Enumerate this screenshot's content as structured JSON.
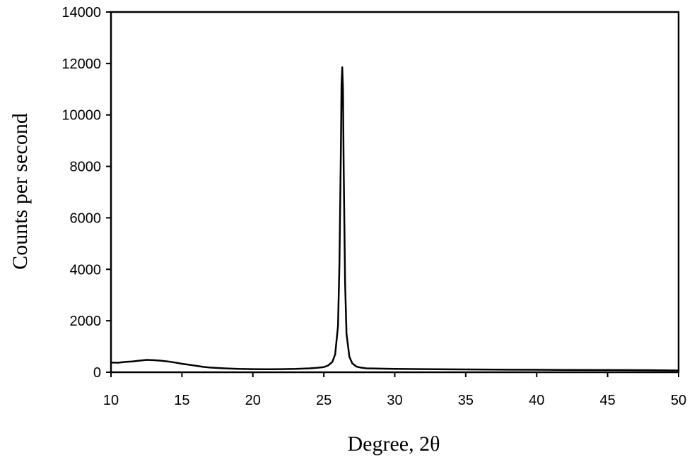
{
  "chart_data": {
    "type": "line",
    "title": "",
    "xlabel": "Degree, 2θ",
    "ylabel": "Counts per second",
    "xlim": [
      10,
      50
    ],
    "ylim": [
      0,
      14000
    ],
    "x_ticks": [
      10,
      15,
      20,
      25,
      30,
      35,
      40,
      45,
      50
    ],
    "y_ticks": [
      0,
      2000,
      4000,
      6000,
      8000,
      10000,
      12000,
      14000
    ],
    "grid": false,
    "legend": "none",
    "line_color": "#000000",
    "series": [
      {
        "x": [
          10,
          10.5,
          11,
          11.5,
          12,
          12.5,
          13,
          13.5,
          14,
          14.5,
          15,
          15.5,
          16,
          16.5,
          17,
          18,
          19,
          20,
          21,
          22,
          23,
          24,
          24.5,
          25,
          25.3,
          25.6,
          25.8,
          26.0,
          26.1,
          26.2,
          26.25,
          26.3,
          26.35,
          26.4,
          26.5,
          26.6,
          26.8,
          27.0,
          27.3,
          27.6,
          28,
          29,
          30,
          32,
          35,
          38,
          40,
          42,
          45,
          48,
          50
        ],
        "y": [
          380,
          370,
          400,
          420,
          450,
          480,
          470,
          450,
          420,
          380,
          330,
          290,
          250,
          210,
          180,
          150,
          130,
          120,
          115,
          120,
          130,
          150,
          170,
          200,
          260,
          400,
          700,
          1800,
          4200,
          8500,
          11200,
          11850,
          11000,
          8000,
          3500,
          1500,
          600,
          350,
          220,
          180,
          150,
          140,
          130,
          120,
          110,
          100,
          95,
          90,
          85,
          80,
          70
        ]
      }
    ]
  }
}
